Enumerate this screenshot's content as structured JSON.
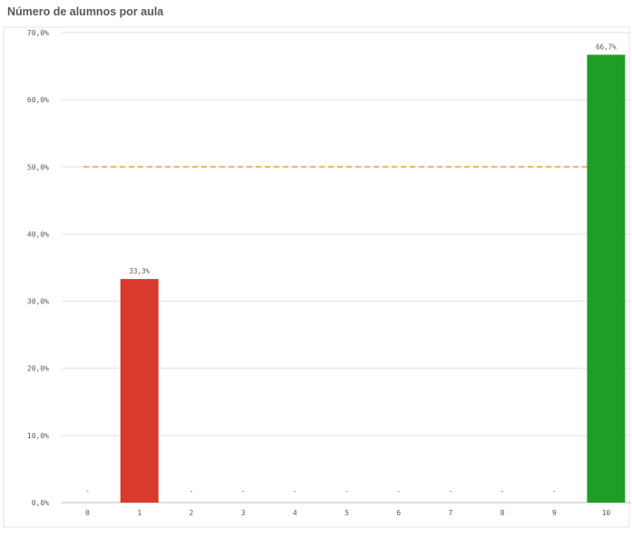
{
  "chart_data": {
    "type": "bar",
    "title": "Número de alumnos por aula",
    "xlabel": "",
    "ylabel": "",
    "categories": [
      "0",
      "1",
      "2",
      "3",
      "4",
      "5",
      "6",
      "7",
      "8",
      "9",
      "10"
    ],
    "values": [
      0,
      33.3,
      0,
      0,
      0,
      0,
      0,
      0,
      0,
      0,
      66.7
    ],
    "data_labels": [
      "-",
      "33,3%",
      "-",
      "-",
      "-",
      "-",
      "-",
      "-",
      "-",
      "-",
      "66,7%"
    ],
    "bar_colors": [
      "#b0b0b0",
      "#d93a2b",
      "#b0b0b0",
      "#b0b0b0",
      "#b0b0b0",
      "#b0b0b0",
      "#b0b0b0",
      "#b0b0b0",
      "#b0b0b0",
      "#b0b0b0",
      "#1f9e25"
    ],
    "ylim": [
      0,
      70
    ],
    "yticks": [
      0,
      10,
      20,
      30,
      40,
      50,
      60,
      70
    ],
    "ytick_labels": [
      "0,0%",
      "10,0%",
      "20,0%",
      "30,0%",
      "40,0%",
      "50,0%",
      "60,0%",
      "70,0%"
    ],
    "reference_line": {
      "value": 50,
      "color": "#f0a030",
      "style": "dashed"
    },
    "grid": true,
    "gridline_color": "#e3e3e3"
  }
}
